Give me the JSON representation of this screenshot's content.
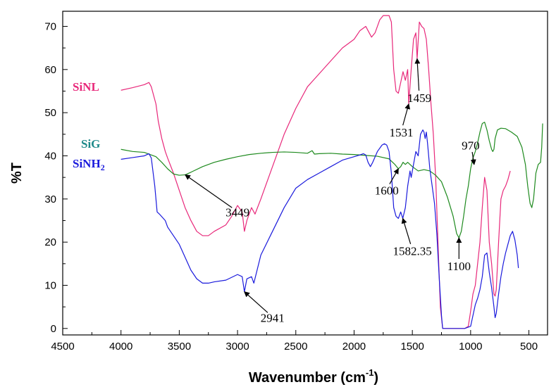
{
  "chart_data": {
    "type": "line",
    "title": "",
    "xlabel": "Wavenumber (cm",
    "xlabel_sup": "-1",
    "xlabel_end": ")",
    "ylabel": "%T",
    "xlim": [
      4500,
      340
    ],
    "ylim": [
      -1.5,
      73.5
    ],
    "x_ticks": [
      4500,
      4000,
      3500,
      3000,
      2500,
      2000,
      1500,
      1000,
      500
    ],
    "x_tick_labels": [
      "4500",
      "4000",
      "3500",
      "3000",
      "2500",
      "2000",
      "1500",
      "1000",
      "500"
    ],
    "y_ticks": [
      0,
      10,
      20,
      30,
      40,
      50,
      60,
      70
    ],
    "y_tick_labels": [
      "0",
      "10",
      "20",
      "30",
      "40",
      "50",
      "60",
      "70"
    ],
    "grid": false,
    "series": [
      {
        "name": "SiNL",
        "color": "#e8287a",
        "points": [
          [
            4000,
            55.2
          ],
          [
            3900,
            55.8
          ],
          [
            3800,
            56.5
          ],
          [
            3760,
            57.0
          ],
          [
            3740,
            56.0
          ],
          [
            3700,
            52.0
          ],
          [
            3680,
            48.0
          ],
          [
            3650,
            44.0
          ],
          [
            3620,
            41.0
          ],
          [
            3600,
            39.5
          ],
          [
            3550,
            36.0
          ],
          [
            3500,
            32.0
          ],
          [
            3450,
            28.0
          ],
          [
            3400,
            25.0
          ],
          [
            3350,
            22.5
          ],
          [
            3300,
            21.5
          ],
          [
            3250,
            21.5
          ],
          [
            3200,
            22.5
          ],
          [
            3100,
            24.0
          ],
          [
            3050,
            26.0
          ],
          [
            3000,
            28.5
          ],
          [
            2960,
            27.0
          ],
          [
            2941,
            22.5
          ],
          [
            2920,
            25.0
          ],
          [
            2880,
            28.0
          ],
          [
            2850,
            26.5
          ],
          [
            2800,
            30.0
          ],
          [
            2700,
            37.5
          ],
          [
            2600,
            45.0
          ],
          [
            2500,
            51.0
          ],
          [
            2400,
            56.0
          ],
          [
            2350,
            57.5
          ],
          [
            2200,
            62.0
          ],
          [
            2100,
            65.0
          ],
          [
            2000,
            67.0
          ],
          [
            1950,
            69.0
          ],
          [
            1900,
            70.0
          ],
          [
            1850,
            67.5
          ],
          [
            1820,
            68.5
          ],
          [
            1780,
            71.5
          ],
          [
            1750,
            72.5
          ],
          [
            1700,
            72.5
          ],
          [
            1680,
            71.0
          ],
          [
            1660,
            60.0
          ],
          [
            1640,
            55.0
          ],
          [
            1620,
            54.5
          ],
          [
            1600,
            57.0
          ],
          [
            1580,
            59.5
          ],
          [
            1560,
            57.5
          ],
          [
            1540,
            60.0
          ],
          [
            1531,
            52.0
          ],
          [
            1510,
            60.0
          ],
          [
            1490,
            67.0
          ],
          [
            1470,
            68.5
          ],
          [
            1459,
            62.5
          ],
          [
            1440,
            71.0
          ],
          [
            1420,
            70.0
          ],
          [
            1400,
            69.5
          ],
          [
            1380,
            67.0
          ],
          [
            1360,
            60.0
          ],
          [
            1340,
            52.0
          ],
          [
            1320,
            45.0
          ],
          [
            1300,
            35.0
          ],
          [
            1280,
            20.0
          ],
          [
            1260,
            5.0
          ],
          [
            1240,
            0.0
          ],
          [
            1200,
            0.0
          ],
          [
            1100,
            0.0
          ],
          [
            1050,
            0.0
          ],
          [
            1020,
            0.5
          ],
          [
            1000,
            4.0
          ],
          [
            980,
            8.0
          ],
          [
            960,
            10.0
          ],
          [
            940,
            15.0
          ],
          [
            920,
            20.0
          ],
          [
            900,
            28.0
          ],
          [
            880,
            35.0
          ],
          [
            860,
            32.0
          ],
          [
            840,
            20.0
          ],
          [
            820,
            15.0
          ],
          [
            800,
            8.0
          ],
          [
            790,
            7.5
          ],
          [
            780,
            9.0
          ],
          [
            760,
            20.0
          ],
          [
            740,
            30.0
          ],
          [
            720,
            32.0
          ],
          [
            700,
            33.0
          ],
          [
            680,
            34.5
          ],
          [
            660,
            36.5
          ]
        ]
      },
      {
        "name": "SiG",
        "color": "#1e8a1e",
        "points": [
          [
            4000,
            41.5
          ],
          [
            3900,
            41.0
          ],
          [
            3800,
            40.8
          ],
          [
            3700,
            39.8
          ],
          [
            3650,
            38.5
          ],
          [
            3600,
            37.0
          ],
          [
            3550,
            35.8
          ],
          [
            3500,
            35.5
          ],
          [
            3449,
            35.6
          ],
          [
            3400,
            36.2
          ],
          [
            3300,
            37.5
          ],
          [
            3200,
            38.5
          ],
          [
            3100,
            39.2
          ],
          [
            3000,
            39.8
          ],
          [
            2900,
            40.3
          ],
          [
            2800,
            40.6
          ],
          [
            2700,
            40.8
          ],
          [
            2600,
            40.9
          ],
          [
            2500,
            40.8
          ],
          [
            2400,
            40.6
          ],
          [
            2360,
            41.2
          ],
          [
            2340,
            40.4
          ],
          [
            2300,
            40.5
          ],
          [
            2200,
            40.6
          ],
          [
            2100,
            40.4
          ],
          [
            2000,
            40.3
          ],
          [
            1900,
            40.1
          ],
          [
            1800,
            39.9
          ],
          [
            1700,
            39.3
          ],
          [
            1650,
            38.0
          ],
          [
            1620,
            37.0
          ],
          [
            1600,
            37.5
          ],
          [
            1580,
            38.5
          ],
          [
            1560,
            38.0
          ],
          [
            1540,
            38.5
          ],
          [
            1500,
            37.5
          ],
          [
            1450,
            36.5
          ],
          [
            1400,
            36.8
          ],
          [
            1350,
            36.5
          ],
          [
            1300,
            35.5
          ],
          [
            1250,
            34.0
          ],
          [
            1200,
            30.5
          ],
          [
            1150,
            26.0
          ],
          [
            1120,
            22.0
          ],
          [
            1100,
            21.0
          ],
          [
            1080,
            22.5
          ],
          [
            1060,
            26.0
          ],
          [
            1040,
            30.0
          ],
          [
            1020,
            33.0
          ],
          [
            1000,
            37.0
          ],
          [
            980,
            39.5
          ],
          [
            960,
            41.0
          ],
          [
            940,
            43.0
          ],
          [
            920,
            45.5
          ],
          [
            900,
            47.5
          ],
          [
            880,
            47.8
          ],
          [
            860,
            46.0
          ],
          [
            840,
            43.5
          ],
          [
            820,
            41.5
          ],
          [
            810,
            41.0
          ],
          [
            800,
            41.5
          ],
          [
            790,
            44.0
          ],
          [
            770,
            46.0
          ],
          [
            740,
            46.4
          ],
          [
            700,
            46.3
          ],
          [
            650,
            45.5
          ],
          [
            600,
            44.5
          ],
          [
            560,
            42.0
          ],
          [
            530,
            38.0
          ],
          [
            510,
            33.0
          ],
          [
            490,
            29.0
          ],
          [
            475,
            28.0
          ],
          [
            460,
            30.0
          ],
          [
            440,
            36.0
          ],
          [
            420,
            38.0
          ],
          [
            400,
            38.5
          ],
          [
            390,
            42.0
          ],
          [
            382,
            47.5
          ]
        ]
      },
      {
        "name": "SiNH2",
        "color": "#1a1adc",
        "points": [
          [
            4000,
            39.2
          ],
          [
            3900,
            39.6
          ],
          [
            3800,
            40.0
          ],
          [
            3760,
            40.5
          ],
          [
            3740,
            39.5
          ],
          [
            3710,
            33.0
          ],
          [
            3690,
            27.0
          ],
          [
            3670,
            26.5
          ],
          [
            3620,
            25.0
          ],
          [
            3600,
            23.5
          ],
          [
            3550,
            21.5
          ],
          [
            3500,
            19.5
          ],
          [
            3450,
            16.5
          ],
          [
            3400,
            13.5
          ],
          [
            3350,
            11.5
          ],
          [
            3300,
            10.5
          ],
          [
            3250,
            10.5
          ],
          [
            3200,
            10.8
          ],
          [
            3100,
            11.2
          ],
          [
            3000,
            12.5
          ],
          [
            2960,
            12.0
          ],
          [
            2941,
            8.5
          ],
          [
            2920,
            11.5
          ],
          [
            2880,
            12.0
          ],
          [
            2860,
            10.5
          ],
          [
            2800,
            17.0
          ],
          [
            2700,
            22.5
          ],
          [
            2600,
            28.0
          ],
          [
            2500,
            32.5
          ],
          [
            2400,
            34.5
          ],
          [
            2300,
            36.0
          ],
          [
            2200,
            37.5
          ],
          [
            2100,
            39.0
          ],
          [
            2000,
            39.8
          ],
          [
            1950,
            40.2
          ],
          [
            1920,
            40.5
          ],
          [
            1900,
            40.2
          ],
          [
            1880,
            38.5
          ],
          [
            1860,
            37.5
          ],
          [
            1840,
            38.5
          ],
          [
            1800,
            41.0
          ],
          [
            1760,
            42.5
          ],
          [
            1740,
            42.8
          ],
          [
            1720,
            42.5
          ],
          [
            1700,
            41.0
          ],
          [
            1680,
            36.0
          ],
          [
            1660,
            28.0
          ],
          [
            1640,
            26.0
          ],
          [
            1620,
            25.5
          ],
          [
            1600,
            27.0
          ],
          [
            1582,
            25.5
          ],
          [
            1560,
            28.0
          ],
          [
            1540,
            33.0
          ],
          [
            1520,
            36.5
          ],
          [
            1510,
            35.0
          ],
          [
            1490,
            38.0
          ],
          [
            1470,
            41.0
          ],
          [
            1450,
            40.0
          ],
          [
            1430,
            45.0
          ],
          [
            1410,
            46.0
          ],
          [
            1400,
            45.5
          ],
          [
            1390,
            44.0
          ],
          [
            1380,
            45.5
          ],
          [
            1370,
            43.0
          ],
          [
            1350,
            37.0
          ],
          [
            1330,
            33.0
          ],
          [
            1310,
            29.0
          ],
          [
            1290,
            22.0
          ],
          [
            1270,
            12.0
          ],
          [
            1250,
            3.0
          ],
          [
            1240,
            0.0
          ],
          [
            1200,
            0.0
          ],
          [
            1100,
            0.0
          ],
          [
            1050,
            0.0
          ],
          [
            1000,
            0.5
          ],
          [
            980,
            3.0
          ],
          [
            960,
            5.5
          ],
          [
            940,
            7.0
          ],
          [
            920,
            9.0
          ],
          [
            900,
            12.0
          ],
          [
            880,
            17.0
          ],
          [
            860,
            17.5
          ],
          [
            840,
            13.0
          ],
          [
            820,
            9.5
          ],
          [
            800,
            5.0
          ],
          [
            790,
            2.5
          ],
          [
            780,
            3.5
          ],
          [
            760,
            8.0
          ],
          [
            740,
            12.0
          ],
          [
            720,
            15.0
          ],
          [
            700,
            17.5
          ],
          [
            680,
            19.5
          ],
          [
            660,
            21.5
          ],
          [
            640,
            22.5
          ],
          [
            620,
            20.5
          ],
          [
            600,
            17.0
          ],
          [
            590,
            14.0
          ]
        ]
      }
    ],
    "series_labels": [
      {
        "text": "SiNL",
        "color": "#e8287a"
      },
      {
        "text": "SiG",
        "color": "#1e8a8a"
      },
      {
        "text": "SiNH",
        "sub": "2",
        "color": "#1a1adc"
      }
    ],
    "annotations": [
      {
        "text": "3449",
        "x": 3449,
        "y": 35.6,
        "lx": 3000,
        "ly": 26
      },
      {
        "text": "2941",
        "x": 2941,
        "y": 8.5,
        "lx": 2700,
        "ly": 1.5
      },
      {
        "text": "1600",
        "x": 1620,
        "y": 37.0,
        "lx": 1720,
        "ly": 31
      },
      {
        "text": "1582.35",
        "x": 1582,
        "y": 25.5,
        "lx": 1500,
        "ly": 17
      },
      {
        "text": "1531",
        "x": 1531,
        "y": 52.0,
        "lx": 1595,
        "ly": 44.5
      },
      {
        "text": "1459",
        "x": 1459,
        "y": 62.5,
        "lx": 1440,
        "ly": 52.5
      },
      {
        "text": "970",
        "x": 970,
        "y": 38.0,
        "lx": 1000,
        "ly": 41.5
      },
      {
        "text": "1100",
        "x": 1100,
        "y": 21.0,
        "lx": 1100,
        "ly": 13.5
      }
    ]
  }
}
